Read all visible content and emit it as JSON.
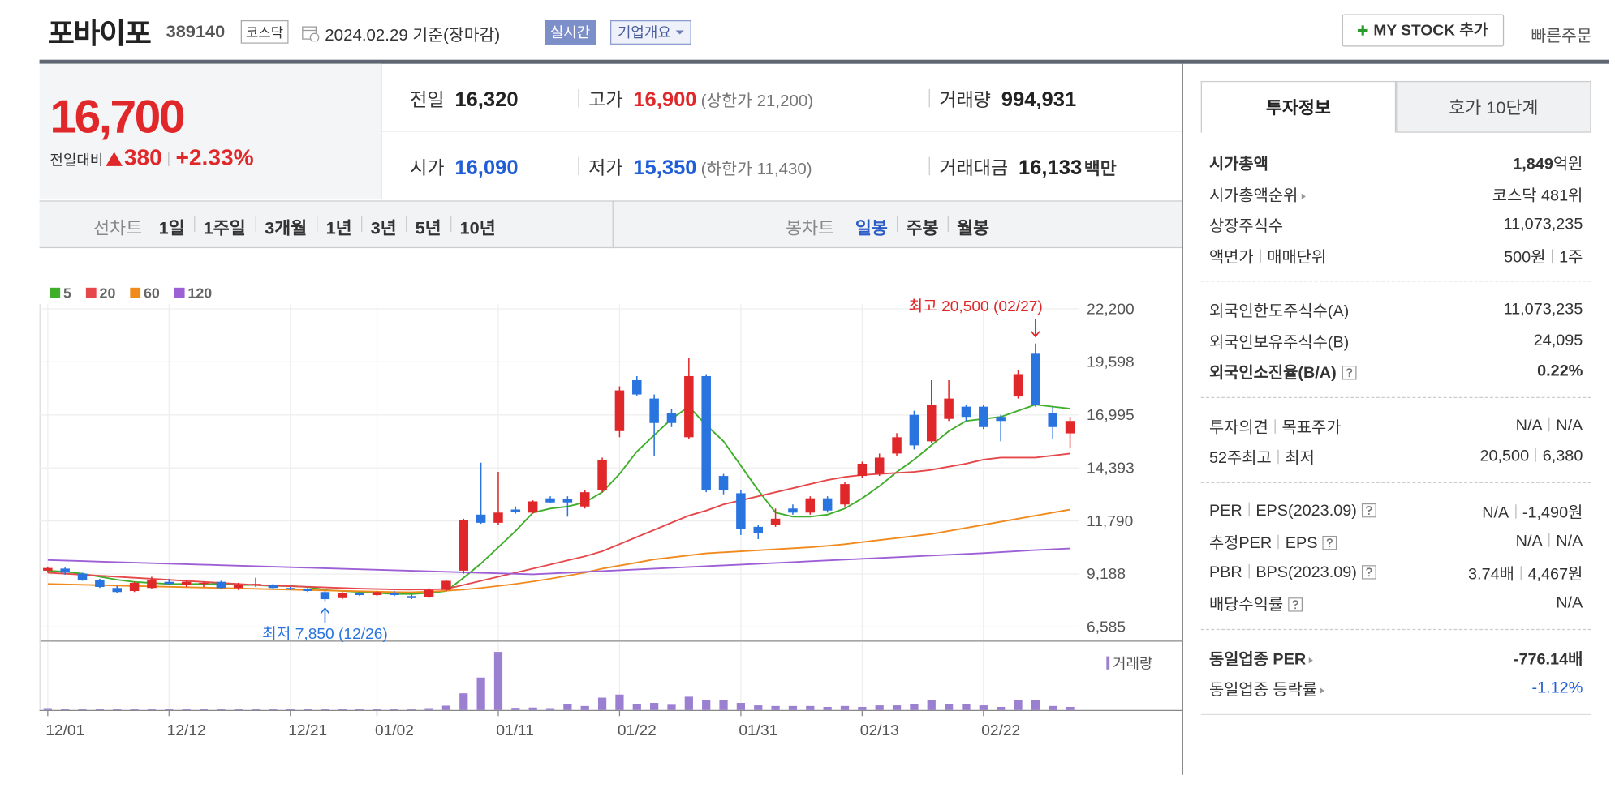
{
  "header": {
    "name": "포바이포",
    "code": "389140",
    "market": "코스닥",
    "date": "2024.02.29",
    "basis": "기준(장마감)",
    "realtime": "실시간",
    "company": "기업개요",
    "mystock": "MY STOCK 추가",
    "quick": "빠른주문"
  },
  "quote": {
    "price": "16,700",
    "change_label": "전일대비",
    "change": "380",
    "rate": "+2.33%",
    "cells": [
      {
        "label": "전일",
        "value": "16,320"
      },
      {
        "label": "고가",
        "value": "16,900",
        "sub_label": "상한가",
        "sub": "21,200"
      },
      {
        "label": "거래량",
        "value": "994,931"
      },
      {
        "label": "시가",
        "value": "16,090"
      },
      {
        "label": "저가",
        "value": "15,350",
        "sub_label": "하한가",
        "sub": "11,430"
      },
      {
        "label": "거래대금",
        "value": "16,133",
        "unit": "백만"
      }
    ]
  },
  "tabs": {
    "line": "선차트",
    "periods": [
      "1일",
      "1주일",
      "3개월",
      "1년",
      "3년",
      "5년",
      "10년"
    ],
    "candle": "봉차트",
    "candle_periods": [
      "일봉",
      "주봉",
      "월봉"
    ]
  },
  "chart_data": {
    "type": "candlestick",
    "up_color": "#e0282a",
    "down_color": "#2a74e0",
    "categories": [
      "12/01",
      null,
      null,
      null,
      null,
      null,
      null,
      "12/12",
      null,
      null,
      null,
      null,
      null,
      null,
      "12/21",
      null,
      null,
      null,
      null,
      "01/02",
      null,
      null,
      null,
      null,
      null,
      null,
      "01/11",
      null,
      null,
      null,
      null,
      null,
      null,
      "01/22",
      null,
      null,
      null,
      null,
      null,
      null,
      "01/31",
      null,
      null,
      null,
      null,
      null,
      null,
      "02/13",
      null,
      null,
      null,
      null,
      null,
      null,
      "02/22",
      null,
      null,
      null,
      null,
      null
    ],
    "open": [
      9350,
      9450,
      9200,
      8900,
      8500,
      8350,
      8500,
      8800,
      8650,
      8700,
      8800,
      8500,
      8650,
      8650,
      8500,
      8450,
      8300,
      8000,
      8250,
      8150,
      8250,
      8100,
      8050,
      8400,
      9350,
      12100,
      11700,
      12350,
      12200,
      12900,
      12850,
      12500,
      13300,
      16200,
      18700,
      17800,
      17100,
      15900,
      18900,
      14000,
      13150,
      11500,
      11600,
      12400,
      12200,
      12900,
      12600,
      14000,
      14100,
      15100,
      17000,
      15700,
      16800,
      17400,
      17400,
      16900,
      17900,
      20000,
      17100,
      16090
    ],
    "high": [
      9550,
      9500,
      9250,
      8950,
      8600,
      8800,
      9050,
      8950,
      8850,
      8800,
      8850,
      8750,
      9000,
      8700,
      8550,
      8500,
      8350,
      8300,
      8300,
      8350,
      8350,
      8200,
      8500,
      8900,
      11900,
      14650,
      14200,
      12500,
      12800,
      13000,
      13000,
      13300,
      14900,
      18400,
      18900,
      18000,
      17300,
      19800,
      19000,
      14100,
      13300,
      11600,
      12400,
      12600,
      13000,
      13000,
      13700,
      14700,
      15100,
      16100,
      17200,
      18700,
      18700,
      17500,
      17500,
      17000,
      19200,
      20500,
      17400,
      16900
    ],
    "low": [
      9250,
      9150,
      8850,
      8500,
      8250,
      8300,
      8450,
      8650,
      8550,
      8550,
      8450,
      8400,
      8550,
      8450,
      8400,
      8300,
      7850,
      7950,
      8100,
      8100,
      8100,
      7950,
      8000,
      8350,
      9200,
      11650,
      11600,
      12150,
      12150,
      12650,
      12000,
      12400,
      13200,
      15900,
      17950,
      15000,
      16400,
      15800,
      13200,
      13100,
      11100,
      10900,
      11500,
      12100,
      12100,
      12200,
      12500,
      13900,
      14000,
      15000,
      15300,
      15600,
      16700,
      16700,
      16300,
      15700,
      17800,
      17400,
      15800,
      15350
    ],
    "close": [
      9480,
      9250,
      8900,
      8550,
      8300,
      8750,
      8900,
      8700,
      8800,
      8750,
      8500,
      8650,
      8700,
      8500,
      8450,
      8350,
      7950,
      8250,
      8150,
      8300,
      8150,
      8000,
      8400,
      8850,
      11850,
      11700,
      12200,
      12250,
      12750,
      12700,
      12700,
      13200,
      14800,
      18200,
      18000,
      16600,
      16600,
      18900,
      13300,
      13300,
      11400,
      11200,
      11900,
      12200,
      12900,
      12300,
      13600,
      14600,
      14900,
      15900,
      15500,
      17500,
      17800,
      16900,
      16400,
      16700,
      19000,
      17500,
      16400,
      16700
    ],
    "series": [
      {
        "name": "5",
        "color": "#3fae2a",
        "values": [
          9350,
          9300,
          9200,
          9050,
          8900,
          8800,
          8750,
          8700,
          8700,
          8700,
          8700,
          8650,
          8650,
          8600,
          8600,
          8550,
          8400,
          8350,
          8300,
          8250,
          8200,
          8200,
          8250,
          8350,
          9000,
          9700,
          10500,
          11300,
          12200,
          12400,
          12500,
          12700,
          13200,
          14100,
          15200,
          16000,
          16800,
          17400,
          16500,
          15700,
          14500,
          13300,
          12200,
          12000,
          12000,
          12100,
          12400,
          12900,
          13500,
          14200,
          14800,
          15500,
          16200,
          16700,
          16800,
          16900,
          17200,
          17500,
          17400,
          17300
        ]
      },
      {
        "name": "20",
        "color": "#e5474a",
        "values": [
          9250,
          9200,
          9150,
          9100,
          9050,
          9000,
          8950,
          8900,
          8850,
          8800,
          8750,
          8700,
          8650,
          8620,
          8590,
          8560,
          8530,
          8500,
          8470,
          8450,
          8430,
          8420,
          8430,
          8450,
          8650,
          8850,
          9050,
          9250,
          9450,
          9650,
          9850,
          10050,
          10300,
          10650,
          11000,
          11350,
          11700,
          12050,
          12300,
          12600,
          12800,
          13000,
          13200,
          13400,
          13600,
          13800,
          13950,
          14050,
          14100,
          14150,
          14200,
          14300,
          14450,
          14600,
          14800,
          14900,
          14900,
          14900,
          15000,
          15100
        ]
      },
      {
        "name": "60",
        "color": "#f08a1c",
        "values": [
          8700,
          8680,
          8660,
          8640,
          8620,
          8600,
          8580,
          8560,
          8540,
          8520,
          8500,
          8480,
          8460,
          8440,
          8420,
          8400,
          8380,
          8360,
          8340,
          8320,
          8300,
          8290,
          8320,
          8360,
          8420,
          8500,
          8600,
          8700,
          8820,
          8950,
          9100,
          9250,
          9450,
          9600,
          9750,
          9900,
          10000,
          10100,
          10200,
          10250,
          10300,
          10350,
          10400,
          10450,
          10500,
          10570,
          10650,
          10750,
          10850,
          10950,
          11050,
          11150,
          11300,
          11450,
          11600,
          11750,
          11900,
          12050,
          12200,
          12350
        ]
      },
      {
        "name": "120",
        "color": "#9d5fd6",
        "values": [
          9870,
          9845,
          9820,
          9795,
          9770,
          9745,
          9720,
          9695,
          9670,
          9645,
          9620,
          9595,
          9570,
          9545,
          9520,
          9495,
          9470,
          9445,
          9420,
          9395,
          9370,
          9345,
          9320,
          9295,
          9270,
          9245,
          9220,
          9195,
          9170,
          9210,
          9250,
          9290,
          9330,
          9370,
          9410,
          9450,
          9490,
          9530,
          9570,
          9610,
          9650,
          9690,
          9730,
          9770,
          9810,
          9850,
          9890,
          9930,
          9970,
          10010,
          10050,
          10090,
          10130,
          10170,
          10210,
          10260,
          10310,
          10360,
          10400,
          10440
        ]
      }
    ],
    "ylim": [
      6585,
      22200
    ],
    "yticks": [
      {
        "value": 6585,
        "label": "6,585"
      },
      {
        "value": 9188,
        "label": "9,188"
      },
      {
        "value": 11790,
        "label": "11,790"
      },
      {
        "value": 14393,
        "label": "14,393"
      },
      {
        "value": 16995,
        "label": "16,995"
      },
      {
        "value": 19598,
        "label": "19,598"
      },
      {
        "value": 22200,
        "label": "22,200"
      }
    ],
    "grid": true,
    "high_label": {
      "text": "최고 20,500 (02/27)",
      "value": 20500
    },
    "low_label": {
      "text": "최저 7,850 (12/26)",
      "value": 7850
    },
    "volume": {
      "name": "거래량",
      "color": "#9b7fd1",
      "ylim": [
        0,
        19000000
      ],
      "values": [
        600000,
        400000,
        350000,
        300000,
        350000,
        300000,
        450000,
        300000,
        250000,
        300000,
        250000,
        300000,
        350000,
        250000,
        300000,
        250000,
        400000,
        300000,
        250000,
        300000,
        250000,
        200000,
        600000,
        1400000,
        5400000,
        10500000,
        18800000,
        700000,
        800000,
        600000,
        2000000,
        1300000,
        4000000,
        5000000,
        2000000,
        2300000,
        1700000,
        4300000,
        3300000,
        3300000,
        2300000,
        1500000,
        1300000,
        1300000,
        1300000,
        1000000,
        1300000,
        1000000,
        1500000,
        1500000,
        2000000,
        3300000,
        2000000,
        2000000,
        1500000,
        1000000,
        3300000,
        3300000,
        1300000,
        994931
      ]
    }
  },
  "invest": {
    "tabs": [
      "투자정보",
      "호가 10단계"
    ],
    "groups": [
      [
        {
          "label": [
            "시가총액"
          ],
          "value": [
            "1,849"
          ],
          "unit": "억원",
          "bold": true
        },
        {
          "label": [
            "시가총액순위"
          ],
          "more": true,
          "value": [
            "코스닥 481위"
          ]
        },
        {
          "label": [
            "상장주식수"
          ],
          "value": [
            "11,073,235"
          ]
        },
        {
          "label": [
            "액면가",
            "매매단위"
          ],
          "value": [
            "500원",
            "1주"
          ]
        }
      ],
      [
        {
          "label": [
            "외국인한도주식수(A)"
          ],
          "value": [
            "11,073,235"
          ]
        },
        {
          "label": [
            "외국인보유주식수(B)"
          ],
          "value": [
            "24,095"
          ]
        },
        {
          "label": [
            "외국인소진율(B/A)"
          ],
          "help": true,
          "value": [
            "0.22%"
          ],
          "bold": true
        }
      ],
      [
        {
          "label": [
            "투자의견",
            "목표주가"
          ],
          "value": [
            "N/A",
            "N/A"
          ]
        },
        {
          "label": [
            "52주최고",
            "최저"
          ],
          "value": [
            "20,500",
            "6,380"
          ]
        }
      ],
      [
        {
          "label": [
            "PER",
            "EPS(2023.09)"
          ],
          "help": true,
          "value": [
            "N/A",
            "-1,490원"
          ]
        },
        {
          "label": [
            "추정PER",
            "EPS"
          ],
          "help": true,
          "value": [
            "N/A",
            "N/A"
          ]
        },
        {
          "label": [
            "PBR",
            "BPS(2023.09)"
          ],
          "help": true,
          "value": [
            "3.74배",
            "4,467원"
          ]
        },
        {
          "label": [
            "배당수익률"
          ],
          "help": true,
          "value": [
            "N/A"
          ]
        }
      ],
      [
        {
          "label": [
            "동일업종 PER"
          ],
          "more": true,
          "value": [
            "-776.14배"
          ],
          "bold": true
        },
        {
          "label": [
            "동일업종 등락률"
          ],
          "more": true,
          "value": [
            "-1.12%"
          ],
          "value_color": "#1f5ed6"
        }
      ]
    ]
  }
}
